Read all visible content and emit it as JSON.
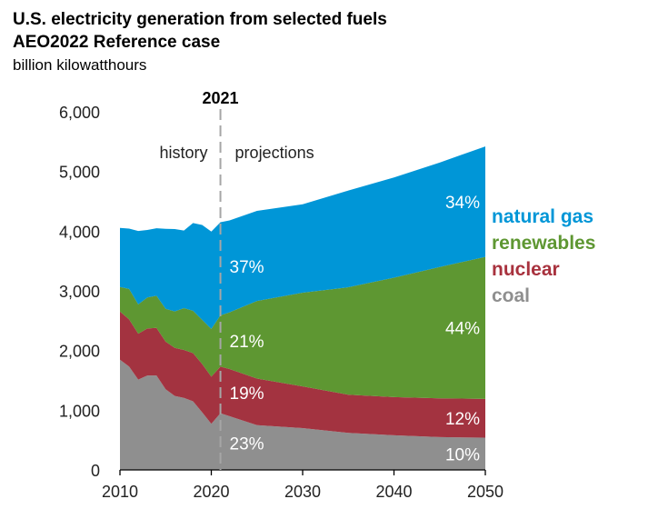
{
  "chart_data": {
    "type": "area",
    "stacked": true,
    "title": "U.S. electricity generation from selected fuels",
    "subtitle": "AEO2022 Reference case",
    "ylabel": "billion kilowatthours",
    "xlabel": "",
    "xlim": [
      2010,
      2050
    ],
    "ylim": [
      0,
      6000
    ],
    "x_ticks": [
      "2010",
      "2020",
      "2030",
      "2040",
      "2050"
    ],
    "y_ticks": [
      "0",
      "1,000",
      "2,000",
      "3,000",
      "4,000",
      "5,000",
      "6,000"
    ],
    "grid": false,
    "divider": {
      "year": 2021,
      "label": "2021",
      "left_label": "history",
      "right_label": "projections"
    },
    "legend_position": "right",
    "x": [
      2010,
      2011,
      2012,
      2013,
      2014,
      2015,
      2016,
      2017,
      2018,
      2019,
      2020,
      2021,
      2022,
      2025,
      2030,
      2035,
      2040,
      2045,
      2050
    ],
    "series": [
      {
        "name": "coal",
        "color": "#8f8f8f",
        "label_color": "#8f8f8f",
        "values": [
          1847,
          1733,
          1514,
          1581,
          1582,
          1352,
          1239,
          1206,
          1149,
          965,
          773,
          950,
          900,
          750,
          700,
          620,
          580,
          550,
          540
        ],
        "share_2021": "23%",
        "share_2050": "10%"
      },
      {
        "name": "nuclear",
        "color": "#a33340",
        "label_color": "#a8323e",
        "values": [
          807,
          790,
          769,
          789,
          797,
          797,
          806,
          805,
          807,
          809,
          790,
          780,
          790,
          780,
          700,
          640,
          640,
          650,
          650
        ],
        "share_2021": "19%",
        "share_2050": "12%"
      },
      {
        "name": "renewables",
        "color": "#5e9732",
        "label_color": "#5e9732",
        "values": [
          410,
          510,
          490,
          520,
          540,
          550,
          610,
          700,
          710,
          740,
          800,
          860,
          950,
          1300,
          1570,
          1800,
          2000,
          2200,
          2380
        ],
        "share_2021": "21%",
        "share_2050": "44%"
      },
      {
        "name": "natural gas",
        "color": "#0096d7",
        "label_color": "#0096d7",
        "values": [
          990,
          1010,
          1230,
          1130,
          1130,
          1340,
          1380,
          1300,
          1470,
          1590,
          1630,
          1560,
          1540,
          1510,
          1480,
          1620,
          1680,
          1750,
          1850
        ],
        "share_2021": "37%",
        "share_2050": "34%"
      }
    ]
  }
}
